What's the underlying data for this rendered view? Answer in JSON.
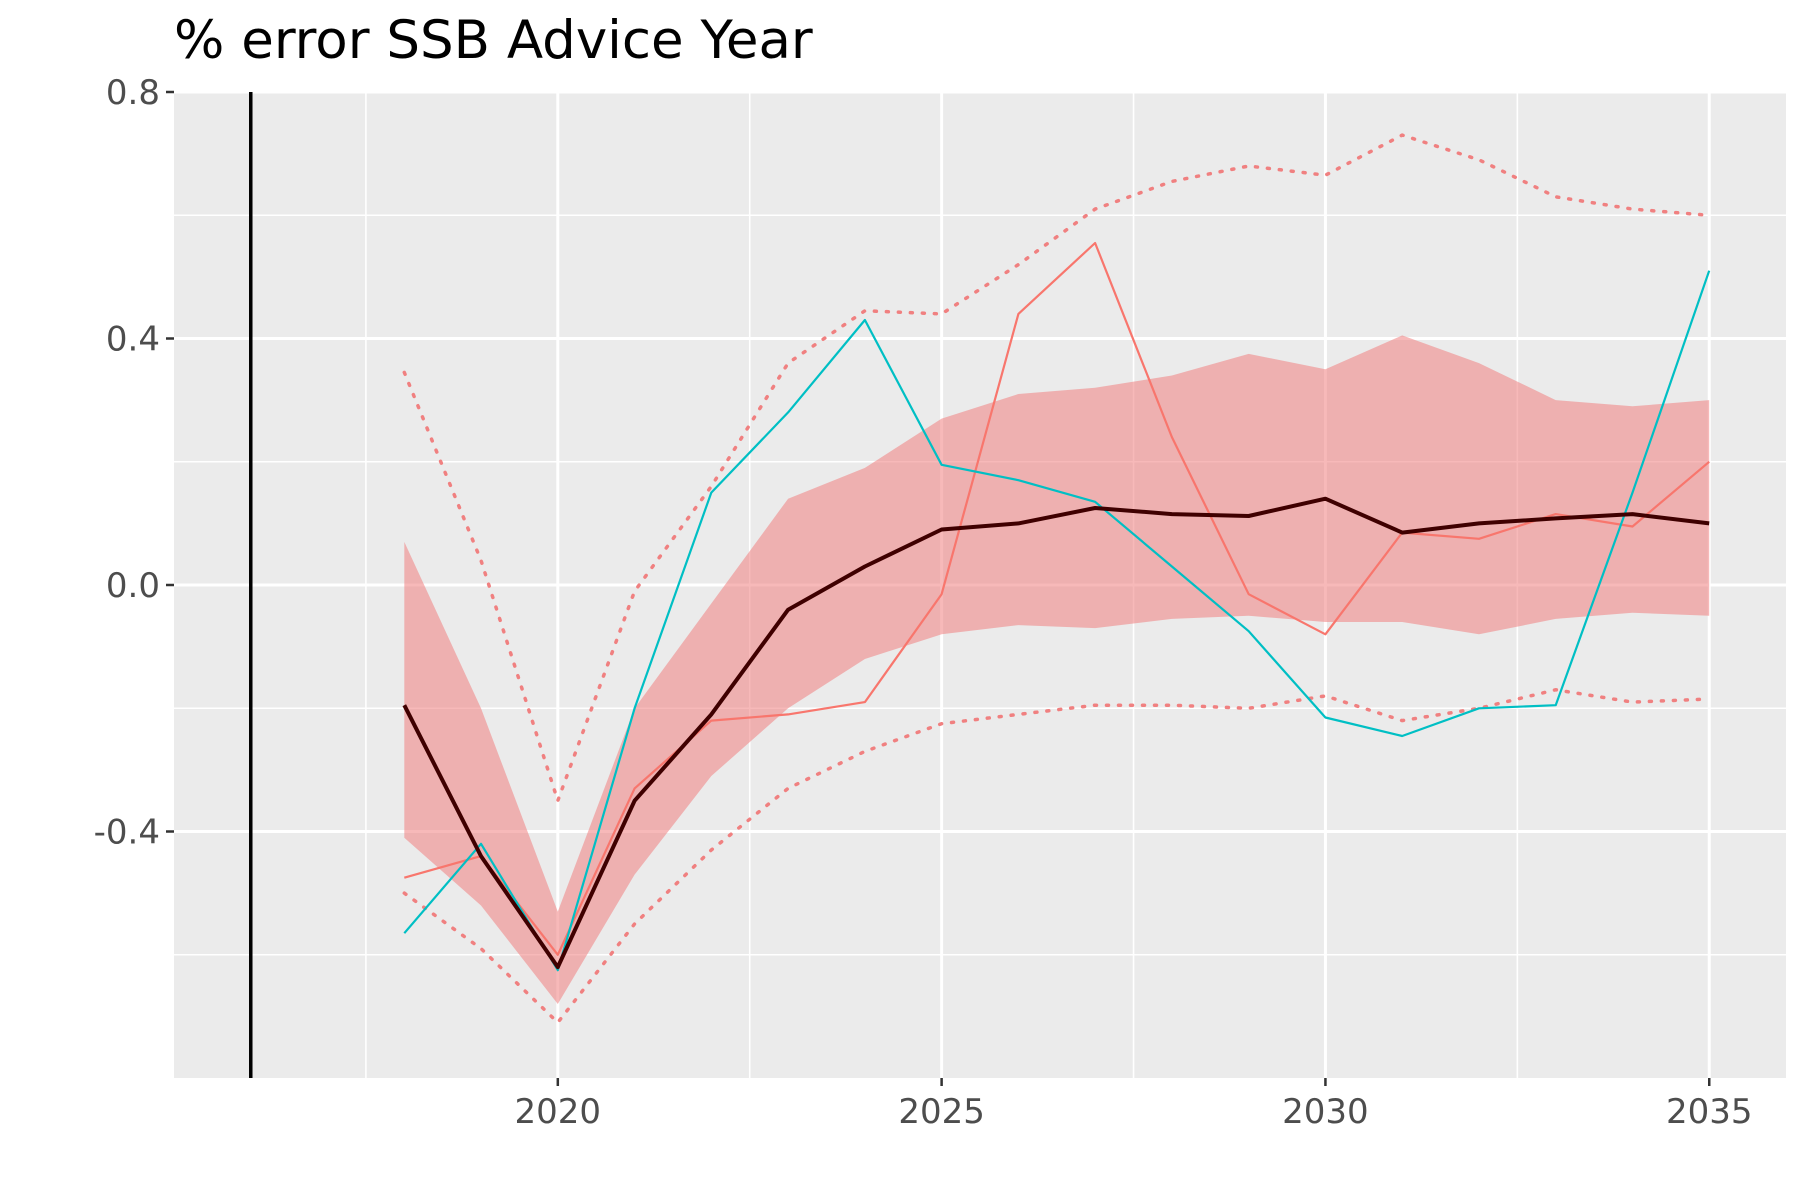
{
  "chart_data": {
    "type": "line",
    "title": "% error SSB Advice Year",
    "xlabel": "",
    "ylabel": "",
    "xlim": [
      2015.0,
      2036.0
    ],
    "ylim": [
      -0.8,
      0.8
    ],
    "x_ticks": [
      2020,
      2025,
      2030,
      2035
    ],
    "y_ticks": [
      -0.4,
      0.0,
      0.4,
      0.8
    ],
    "y_tick_labels": [
      "-0.4",
      "0.0",
      "0.4",
      "0.8"
    ],
    "x_tick_labels": [
      "2020",
      "2025",
      "2030",
      "2035"
    ],
    "grid": true,
    "legend": "none",
    "reference_vline_x": 2016,
    "x": [
      2018,
      2019,
      2020,
      2021,
      2022,
      2023,
      2024,
      2025,
      2026,
      2027,
      2028,
      2029,
      2030,
      2031,
      2032,
      2033,
      2034,
      2035
    ],
    "series": [
      {
        "role": "ribbon",
        "color": "#f08080",
        "upper": [
          0.07,
          -0.2,
          -0.53,
          -0.2,
          -0.03,
          0.14,
          0.19,
          0.27,
          0.31,
          0.32,
          0.34,
          0.375,
          0.35,
          0.405,
          0.36,
          0.3,
          0.29,
          0.3
        ],
        "lower": [
          -0.41,
          -0.52,
          -0.68,
          -0.47,
          -0.31,
          -0.2,
          -0.12,
          -0.08,
          -0.065,
          -0.07,
          -0.055,
          -0.05,
          -0.06,
          -0.06,
          -0.08,
          -0.055,
          -0.045,
          -0.05
        ]
      },
      {
        "role": "upper-dotted",
        "color": "#f08080",
        "values": [
          0.345,
          0.04,
          -0.35,
          -0.01,
          0.16,
          0.36,
          0.445,
          0.44,
          0.52,
          0.61,
          0.655,
          0.68,
          0.665,
          0.73,
          0.69,
          0.63,
          0.61,
          0.6
        ]
      },
      {
        "role": "lower-dotted",
        "color": "#f08080",
        "values": [
          -0.5,
          -0.59,
          -0.71,
          -0.55,
          -0.43,
          -0.33,
          -0.27,
          -0.225,
          -0.21,
          -0.195,
          -0.195,
          -0.2,
          -0.18,
          -0.22,
          -0.2,
          -0.17,
          -0.19,
          -0.185
        ]
      },
      {
        "role": "median",
        "color": "#3f0000",
        "values": [
          -0.195,
          -0.44,
          -0.62,
          -0.35,
          -0.21,
          -0.04,
          0.03,
          0.09,
          0.1,
          0.125,
          0.115,
          0.112,
          0.14,
          0.085,
          0.1,
          0.108,
          0.115,
          0.1
        ]
      },
      {
        "role": "trajectory-red",
        "color": "#f8766d",
        "values": [
          -0.475,
          -0.44,
          -0.6,
          -0.33,
          -0.22,
          -0.21,
          -0.19,
          -0.015,
          0.44,
          0.555,
          0.24,
          -0.015,
          -0.08,
          0.085,
          0.075,
          0.115,
          0.095,
          0.2
        ]
      },
      {
        "role": "trajectory-cyan",
        "color": "#00bfc4",
        "values": [
          -0.565,
          -0.42,
          -0.625,
          -0.2,
          0.15,
          0.28,
          0.43,
          0.195,
          0.17,
          0.135,
          0.03,
          -0.075,
          -0.215,
          -0.245,
          -0.2,
          -0.195,
          0.15,
          0.51
        ]
      }
    ]
  }
}
